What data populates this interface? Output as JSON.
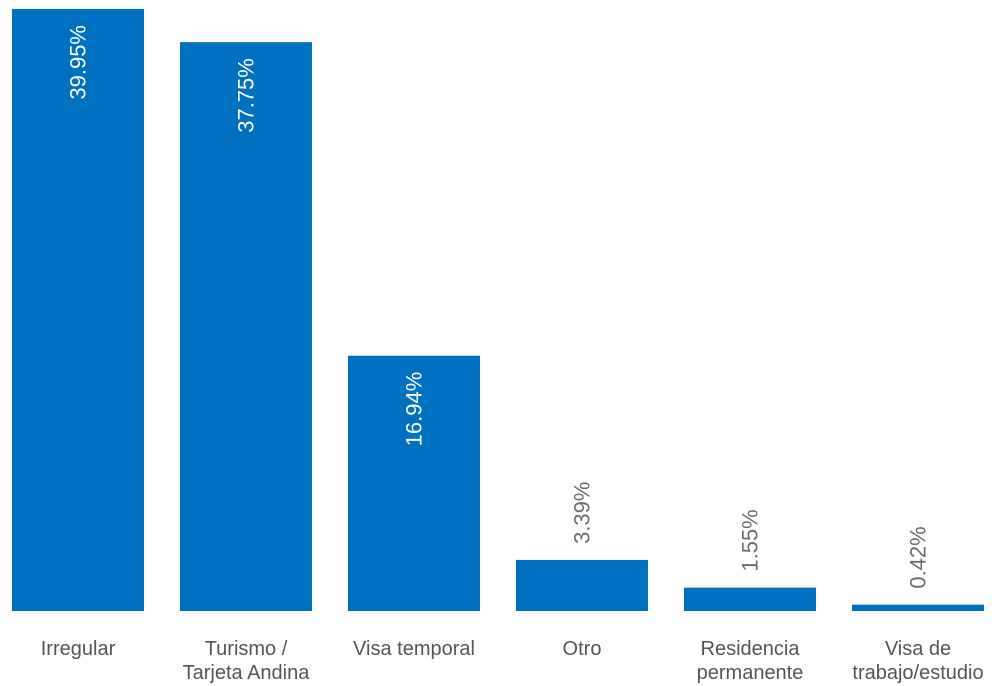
{
  "chart_data": {
    "type": "bar",
    "categories": [
      [
        "Irregular"
      ],
      [
        "Turismo /",
        "Tarjeta Andina"
      ],
      [
        "Visa temporal"
      ],
      [
        "Otro"
      ],
      [
        "Residencia",
        "permanente"
      ],
      [
        "Visa de",
        "trabajo/estudio"
      ]
    ],
    "values": [
      39.95,
      37.75,
      16.94,
      3.39,
      1.55,
      0.42
    ],
    "value_labels": [
      "39.95%",
      "37.75%",
      "16.94%",
      "3.39%",
      "1.55%",
      "0.42%"
    ],
    "ylim": [
      0,
      39.95
    ],
    "title": "",
    "xlabel": "",
    "ylabel": "",
    "grid": false,
    "colors": {
      "bar": "#0070C0",
      "label_inside": "#ffffff",
      "label_outside": "#6b6b6b",
      "category_text": "#555555"
    }
  }
}
